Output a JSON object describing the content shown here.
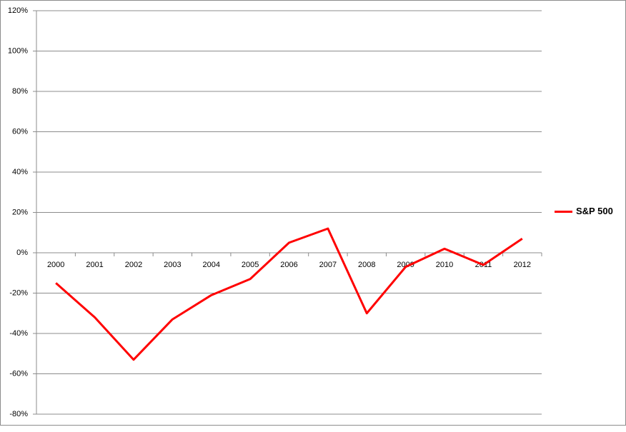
{
  "chart_data": {
    "type": "line",
    "categories": [
      "2000",
      "2001",
      "2002",
      "2003",
      "2004",
      "2005",
      "2006",
      "2007",
      "2008",
      "2009",
      "2010",
      "2011",
      "2012"
    ],
    "series": [
      {
        "name": "S&P 500",
        "color": "#ff0000",
        "values": [
          -15,
          -32,
          -53,
          -33,
          -21,
          -13,
          5,
          12,
          -30,
          -7,
          2,
          -6,
          7
        ]
      }
    ],
    "ylim": [
      -80,
      120
    ],
    "yticks": [
      {
        "value": -80,
        "label": "-80%"
      },
      {
        "value": -60,
        "label": "-60%"
      },
      {
        "value": -40,
        "label": "-40%"
      },
      {
        "value": -20,
        "label": "-20%"
      },
      {
        "value": 0,
        "label": "0%"
      },
      {
        "value": 20,
        "label": "20%"
      },
      {
        "value": 40,
        "label": "40%"
      },
      {
        "value": 60,
        "label": "60%"
      },
      {
        "value": 80,
        "label": "80%"
      },
      {
        "value": 100,
        "label": "100%"
      },
      {
        "value": 120,
        "label": "120%"
      }
    ],
    "grid": true,
    "legend": "right"
  }
}
